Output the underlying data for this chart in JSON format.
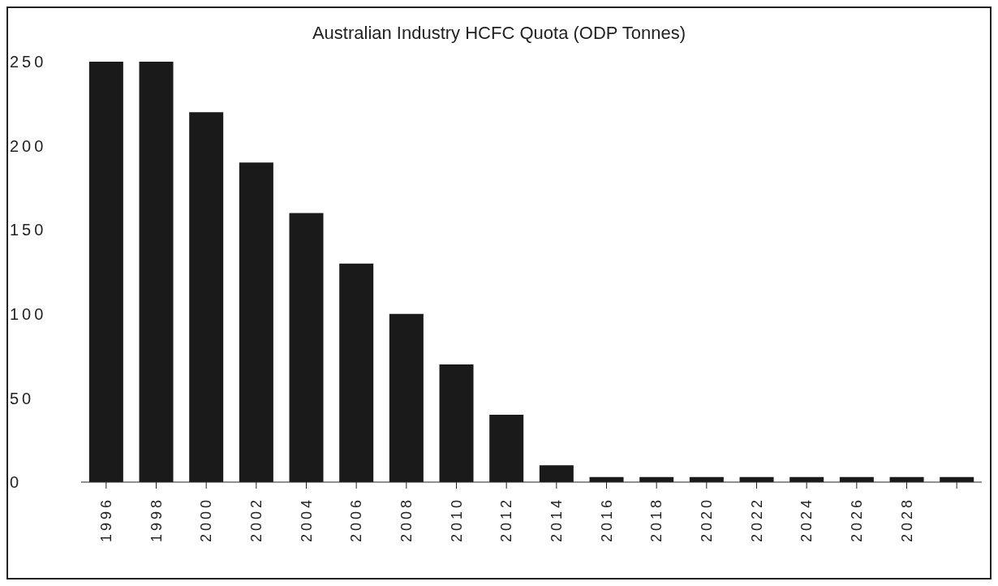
{
  "chart_data": {
    "type": "bar",
    "title": "Australian Industry HCFC Quota (ODP Tonnes)",
    "categories": [
      "1996",
      "1998",
      "2000",
      "2002",
      "2004",
      "2006",
      "2008",
      "2010",
      "2012",
      "2014",
      "2016",
      "2018",
      "2020",
      "2022",
      "2024",
      "2026",
      "2028",
      null
    ],
    "values": [
      250,
      250,
      220,
      190,
      160,
      130,
      100,
      70,
      40,
      10,
      3,
      3,
      3,
      3,
      3,
      3,
      3,
      3
    ],
    "color": "#1a1a1a",
    "ylim": [
      0,
      250
    ],
    "yticks": [
      0,
      50,
      100,
      150,
      200,
      250
    ],
    "grid": false
  }
}
